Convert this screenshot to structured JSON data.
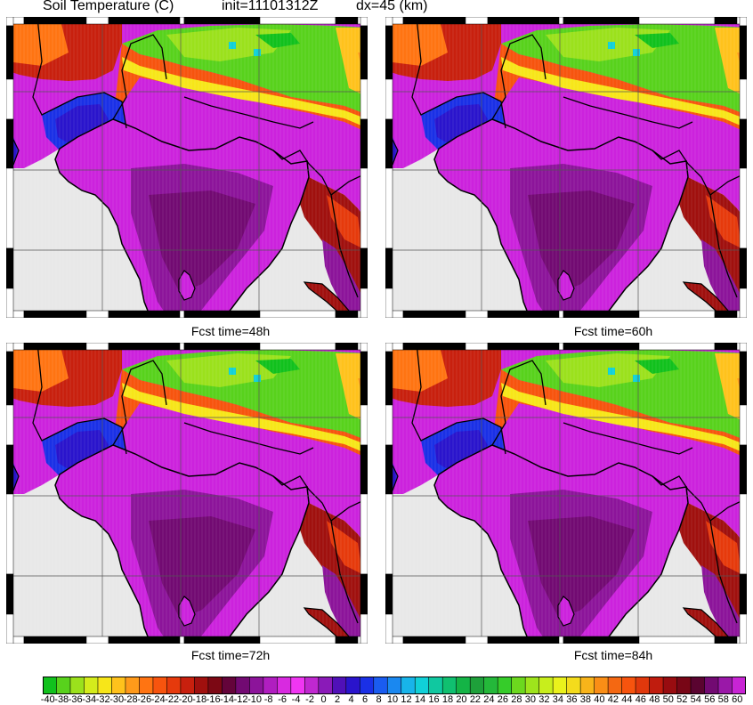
{
  "header": {
    "title": "Soil Temperature (C)",
    "init": "init=11101312Z",
    "dx": "dx=45 (km)"
  },
  "panels": [
    {
      "label": ""
    },
    {
      "label": "Fcst time=48h"
    },
    {
      "label": "Fcst time=60h"
    },
    {
      "label": "Fcst time=72h"
    },
    {
      "label": "Fcst time=84h"
    }
  ],
  "colorbar": {
    "labels": [
      "-40",
      "-38",
      "-36",
      "-34",
      "-32",
      "-30",
      "-28",
      "-26",
      "-24",
      "-22",
      "-20",
      "-18",
      "-16",
      "-14",
      "-12",
      "-10",
      "-8",
      "-6",
      "-4",
      "-2",
      "0",
      "2",
      "4",
      "6",
      "8",
      "10",
      "12",
      "14",
      "16",
      "18",
      "20",
      "22",
      "24",
      "26",
      "28",
      "30",
      "32",
      "34",
      "36",
      "38",
      "40",
      "42",
      "44",
      "46",
      "48",
      "50",
      "52",
      "54",
      "56",
      "58",
      "60"
    ],
    "colors": [
      "#11c11d",
      "#58d21c",
      "#9be11c",
      "#d4ec1c",
      "#f7e619",
      "#ffc21c",
      "#ff9a1a",
      "#ff7412",
      "#f7540e",
      "#e63a0c",
      "#c8200e",
      "#a0100e",
      "#7c0814",
      "#64043a",
      "#720a72",
      "#8c149a",
      "#b01ec0",
      "#d82ae0",
      "#f036f2",
      "#c028d0",
      "#8a1ab8",
      "#5010b8",
      "#2a14cc",
      "#1a30e6",
      "#1a5cf0",
      "#1a88f0",
      "#18b4ea",
      "#10d0d8",
      "#10c8a0",
      "#10c070",
      "#14b446",
      "#1ea03a",
      "#24b83a",
      "#36cc2a",
      "#6cd81e",
      "#9ee41c",
      "#c8ee1c",
      "#eaf21c",
      "#f4dc1c",
      "#f8b41a",
      "#fa8e16",
      "#f46812",
      "#f7540e",
      "#e0380c",
      "#c01c0e",
      "#980c10",
      "#780616",
      "#5a0430",
      "#720a72",
      "#9a18a8",
      "#c824d4",
      "#ee34f0",
      "#c028d0",
      "#8a1ab8",
      "#5010b8",
      "#2a14cc",
      "#1a30e6",
      "#1a5cf0",
      "#1a88f0",
      "#18b4ea",
      "#10d0d8",
      "#10c8a0",
      "#10c070",
      "#14b446",
      "#1ea03a",
      "#24b83a",
      "#36cc2a",
      "#6cd81e",
      "#9ee41c",
      "#c8ee1c",
      "#eaf21c",
      "#f4dc1c",
      "#f8b41a",
      "#fa8e16",
      "#f46812",
      "#f7540e",
      "#e0380c",
      "#c01c0e",
      "#980c10",
      "#780616",
      "#5a0430",
      "#720a72",
      "#9a18a8",
      "#c824d4",
      "#ee34f0",
      "#d030e0",
      "#a020c0",
      "#6818b0",
      "#3010c0",
      "#1a28dc",
      "#1a58ee",
      "#1a8cf0",
      "#18baea",
      "#10d4d8",
      "#10c898",
      "#14b860",
      "#1ea03a",
      "#30c02e",
      "#6cd81e",
      "#a8e41c",
      "#daee1c",
      "#f8e41a",
      "#fbc01a",
      "#fa9a16",
      "#f7720f",
      "#f24a0d",
      "#ff8c14",
      "#ffb41e"
    ]
  },
  "map_colors": {
    "land_default": "#cc22dd",
    "ocean": "#e8e8e8",
    "border": "#000000"
  }
}
